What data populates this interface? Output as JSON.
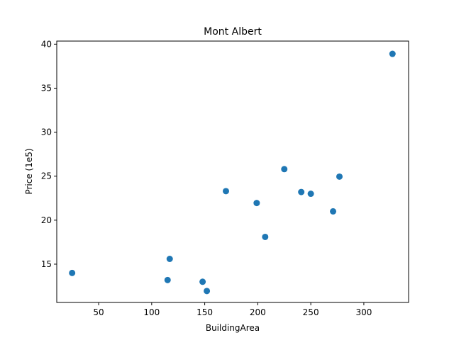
{
  "chart_data": {
    "type": "scatter",
    "title": "Mont Albert",
    "xlabel": "BuildingArea",
    "ylabel": "Price (1e5)",
    "xlim": [
      10.5,
      342.2
    ],
    "ylim": [
      10.65,
      40.35
    ],
    "x_ticks": [
      50,
      100,
      150,
      200,
      250,
      300
    ],
    "y_ticks": [
      15,
      20,
      25,
      30,
      35,
      40
    ],
    "grid": false,
    "marker_color": "#1f77b4",
    "points": [
      {
        "x": 25,
        "y": 14.0
      },
      {
        "x": 115,
        "y": 13.2
      },
      {
        "x": 117,
        "y": 15.6
      },
      {
        "x": 148,
        "y": 13.0
      },
      {
        "x": 152,
        "y": 11.95
      },
      {
        "x": 170,
        "y": 23.3
      },
      {
        "x": 199,
        "y": 21.95
      },
      {
        "x": 207,
        "y": 18.1
      },
      {
        "x": 225,
        "y": 25.8
      },
      {
        "x": 241,
        "y": 23.2
      },
      {
        "x": 250,
        "y": 23.0
      },
      {
        "x": 271,
        "y": 21.0
      },
      {
        "x": 277,
        "y": 24.95
      },
      {
        "x": 327,
        "y": 38.9
      }
    ]
  }
}
